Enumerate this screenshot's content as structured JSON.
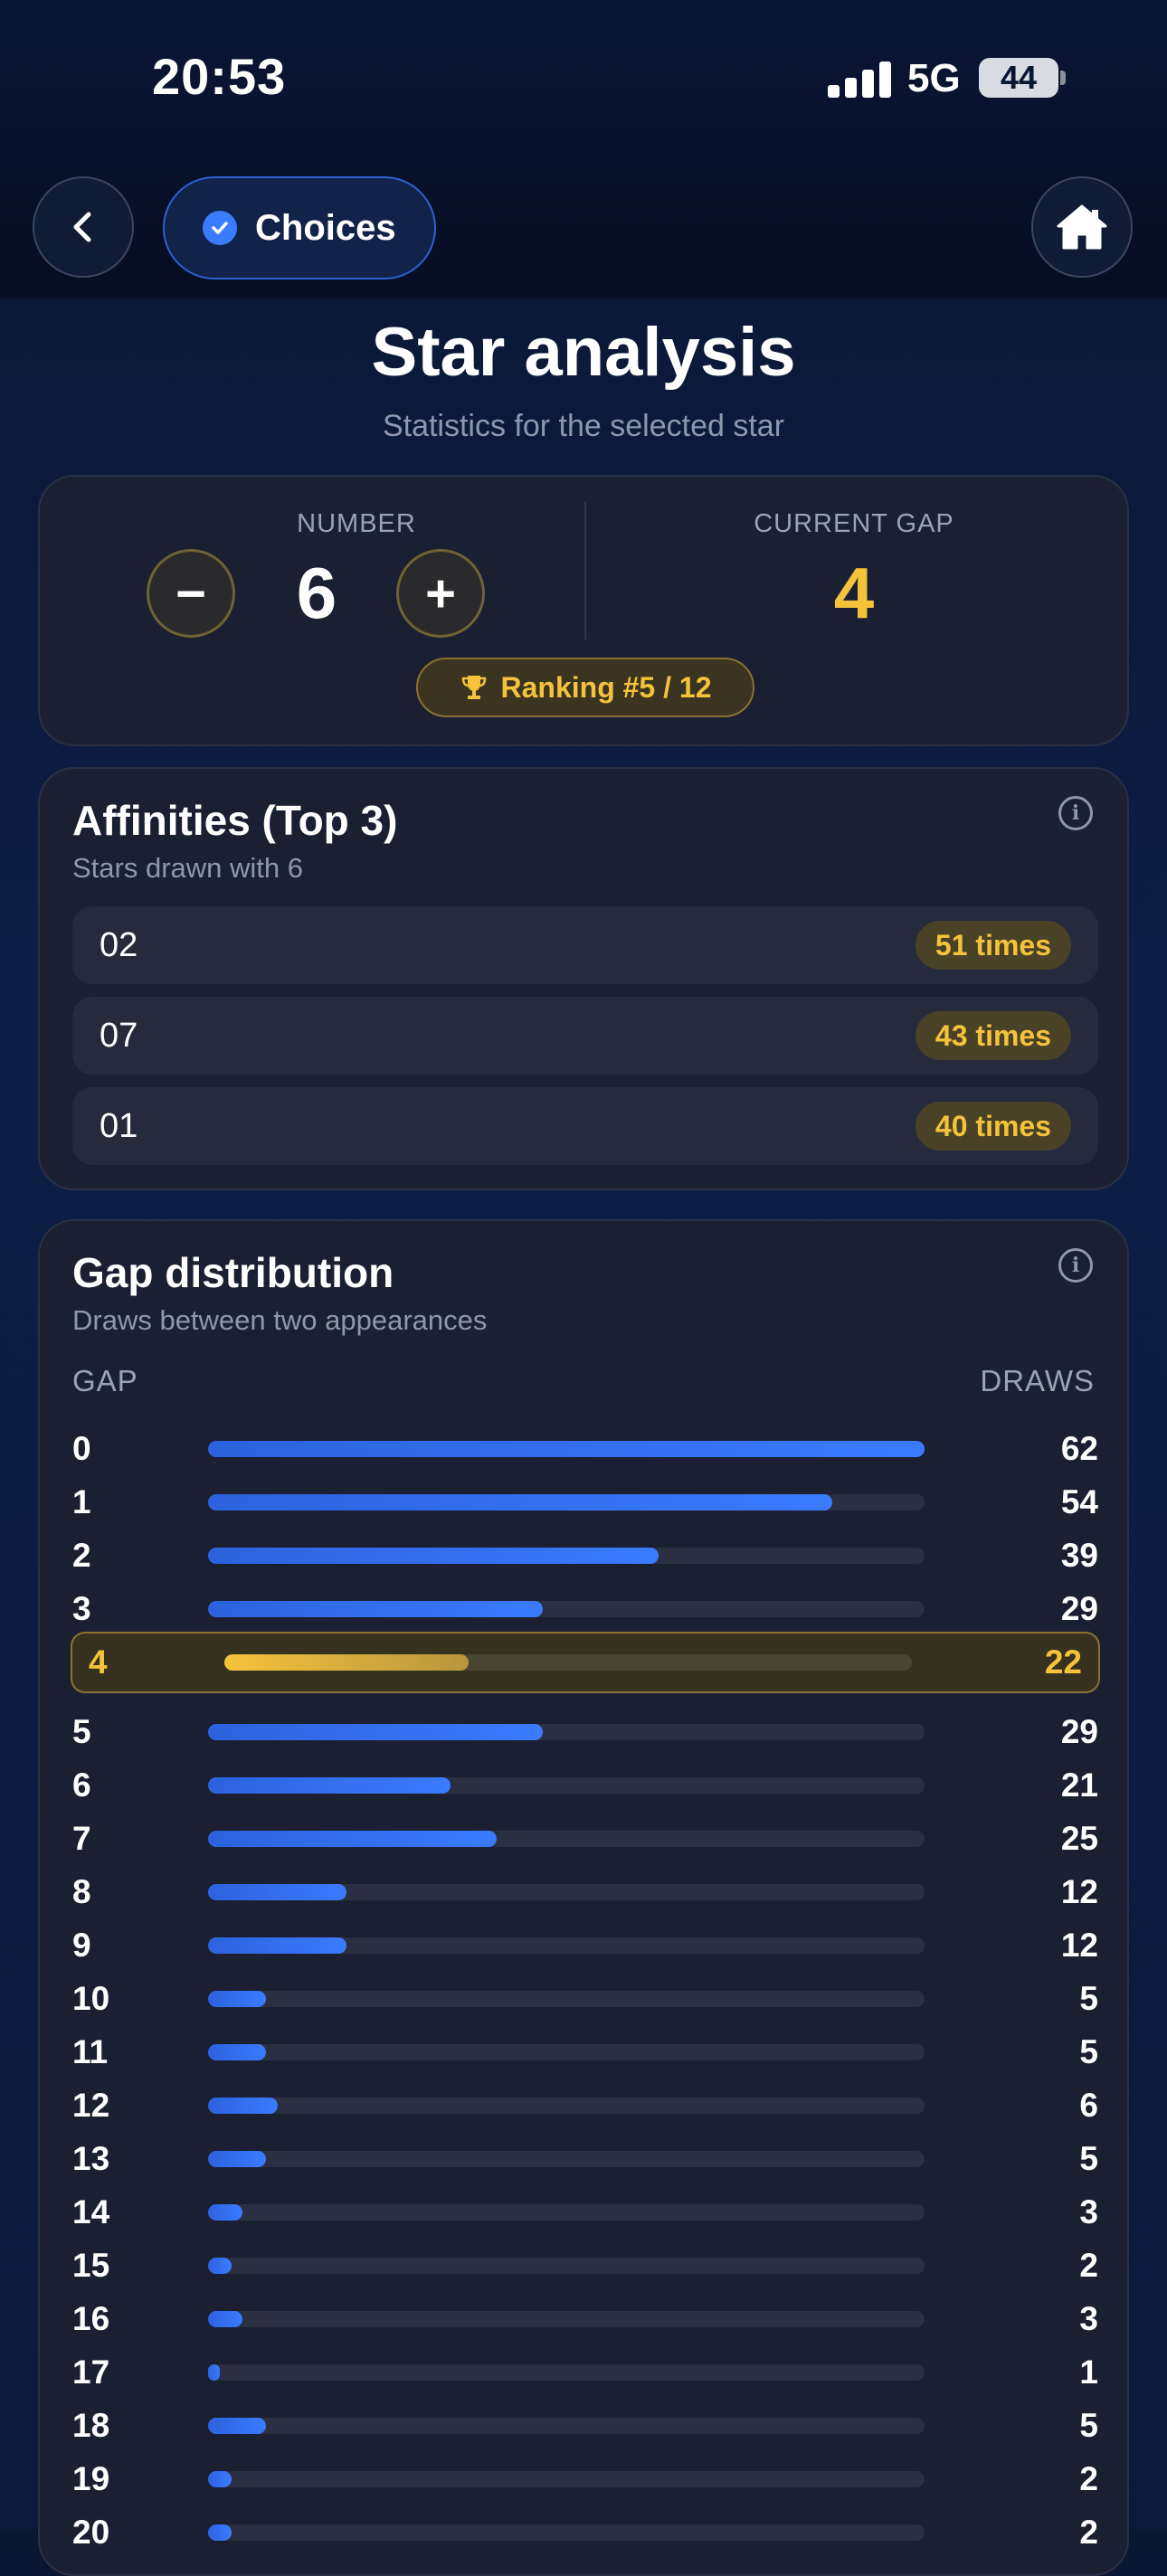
{
  "status_bar": {
    "time": "20:53",
    "network": "5G",
    "battery": "44"
  },
  "nav": {
    "choices_label": "Choices"
  },
  "page": {
    "title": "Star analysis",
    "subtitle": "Statistics for the selected star"
  },
  "selector": {
    "number_label": "NUMBER",
    "number_value": "6",
    "gap_label": "CURRENT GAP",
    "gap_value": "4",
    "ranking": "Ranking #5 / 12",
    "minus": "−",
    "plus": "+"
  },
  "affinities": {
    "title": "Affinities (Top 3)",
    "subtitle": "Stars drawn with 6",
    "items": [
      {
        "number": "02",
        "count": "51 times"
      },
      {
        "number": "07",
        "count": "43 times"
      },
      {
        "number": "01",
        "count": "40 times"
      }
    ]
  },
  "gap_distribution": {
    "title": "Gap distribution",
    "subtitle": "Draws between two appearances",
    "col_gap": "GAP",
    "col_draws": "DRAWS",
    "current_gap": 4,
    "max": 62
  },
  "chart_data": {
    "type": "bar",
    "orientation": "horizontal",
    "title": "Gap distribution",
    "xlabel": "DRAWS",
    "ylabel": "GAP",
    "categories": [
      "0",
      "1",
      "2",
      "3",
      "4",
      "5",
      "6",
      "7",
      "8",
      "9",
      "10",
      "11",
      "12",
      "13",
      "14",
      "15",
      "16",
      "17",
      "18",
      "19",
      "20"
    ],
    "values": [
      62,
      54,
      39,
      29,
      22,
      29,
      21,
      25,
      12,
      12,
      5,
      5,
      6,
      5,
      3,
      2,
      3,
      1,
      5,
      2,
      2
    ],
    "highlight_category": "4"
  }
}
